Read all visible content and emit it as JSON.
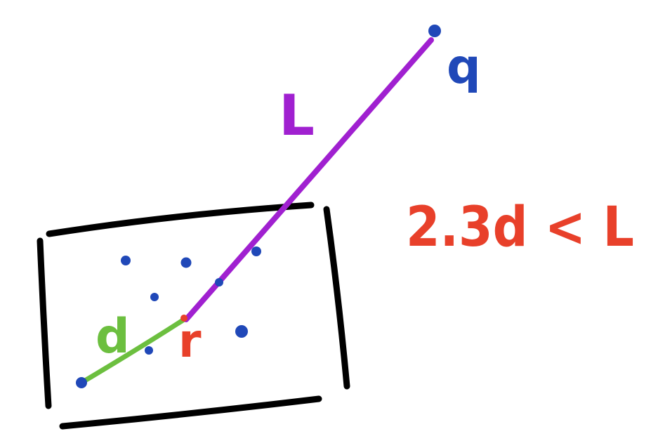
{
  "diagram": {
    "labels": {
      "q": "q",
      "L": "L",
      "d": "d",
      "r": "r",
      "inequality": "2.3d < L"
    },
    "colors": {
      "box": "#000000",
      "points": "#2048b8",
      "segment_L": "#a020d0",
      "segment_d": "#6cbf3f",
      "red_text": "#e8402a",
      "q_label": "#2048b8"
    }
  }
}
